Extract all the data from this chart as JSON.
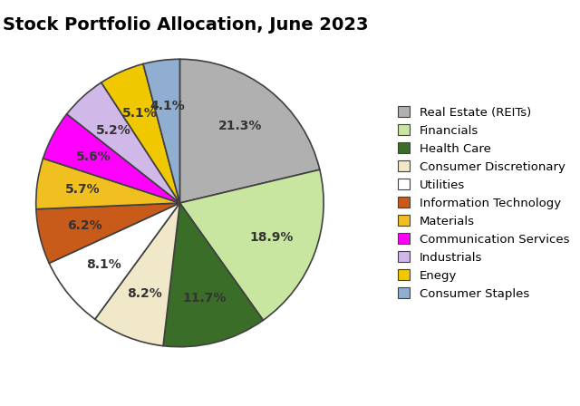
{
  "title": "Stock Portfolio Allocation, June 2023",
  "labels": [
    "Real Estate (REITs)",
    "Financials",
    "Health Care",
    "Consumer Discretionary",
    "Utilities",
    "Information Technology",
    "Materials",
    "Communication Services",
    "Industrials",
    "Enegy",
    "Consumer Staples"
  ],
  "values": [
    21.3,
    18.9,
    11.7,
    8.2,
    8.1,
    6.2,
    5.7,
    5.6,
    5.2,
    5.1,
    4.1
  ],
  "colors": [
    "#b0b0b0",
    "#c8e6a0",
    "#3a6e28",
    "#f0e8c8",
    "#ffffff",
    "#c85a1a",
    "#f0c020",
    "#ff00ff",
    "#d0b8e8",
    "#f0c800",
    "#90aed0"
  ],
  "pct_labels": [
    "21.3%",
    "18.9%",
    "11.7%",
    "8.2%",
    "8.1%",
    "6.2%",
    "5.7%",
    "5.6%",
    "5.2%",
    "5.1%",
    "4.1%"
  ],
  "startangle": 90,
  "counterclock": false,
  "title_fontsize": 14,
  "label_fontsize": 10,
  "legend_fontsize": 9.5
}
